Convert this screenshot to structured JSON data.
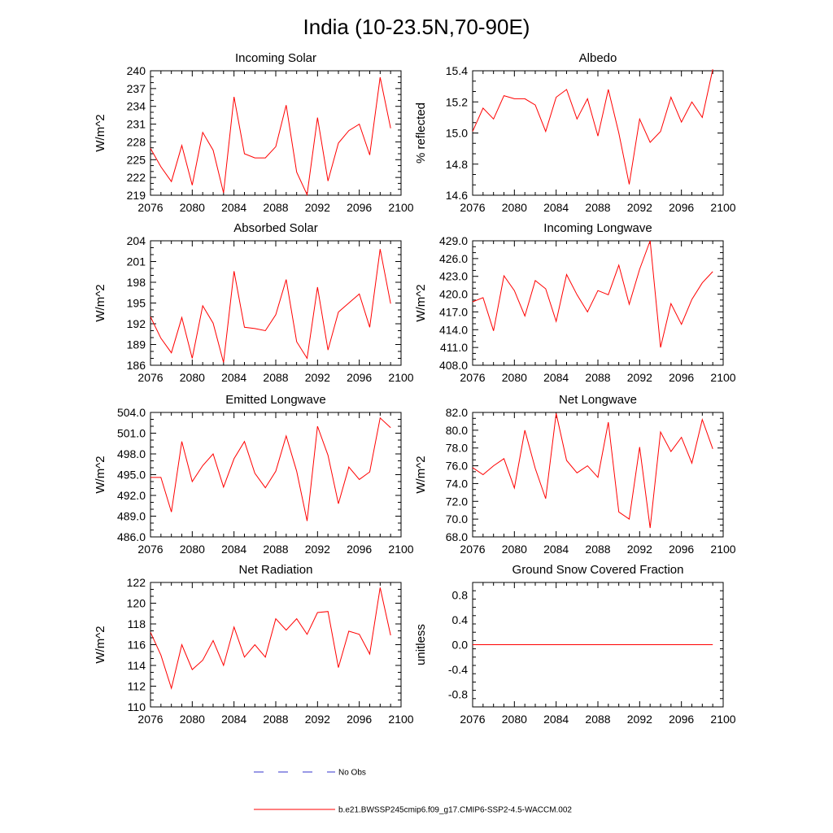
{
  "figure": {
    "title": "India (10-23.5N,70-90E)"
  },
  "colors": {
    "model_line": "#ff0000",
    "obs_line": "#3333cc",
    "axes": "#000000"
  },
  "legend": [
    {
      "label": "No Obs",
      "style": "dashed",
      "color": "#3333cc"
    },
    {
      "label": "b.e21.BWSSP245cmip6.f09_g17.CMIP6-SSP2-4.5-WACCM.002",
      "style": "solid",
      "color": "#ff0000"
    }
  ],
  "chart_data": [
    {
      "type": "line",
      "title": "Incoming Solar",
      "ylabel": "W/m^2",
      "xlim": [
        2076,
        2100
      ],
      "xticks": [
        "2076",
        "2080",
        "2084",
        "2088",
        "2092",
        "2096",
        "2100"
      ],
      "ylim": [
        219,
        240
      ],
      "yticks": [
        "219",
        "222",
        "225",
        "228",
        "231",
        "234",
        "237",
        "240"
      ],
      "x": [
        2076,
        2077,
        2078,
        2079,
        2080,
        2081,
        2082,
        2083,
        2084,
        2085,
        2086,
        2087,
        2088,
        2089,
        2090,
        2091,
        2092,
        2093,
        2094,
        2095,
        2096,
        2097,
        2098,
        2099
      ],
      "series": [
        {
          "name": "b.e21.BWSSP245cmip6.f09_g17.CMIP6-SSP2-4.5-WACCM.002",
          "values": [
            226.9,
            223.8,
            221.3,
            227.4,
            220.7,
            229.6,
            226.6,
            219.4,
            235.6,
            226.0,
            225.3,
            225.3,
            227.2,
            234.2,
            222.9,
            219.1,
            232.1,
            221.4,
            227.8,
            229.9,
            231.0,
            225.8,
            238.9,
            230.3
          ]
        }
      ]
    },
    {
      "type": "line",
      "title": "Albedo",
      "ylabel": "% reflected",
      "xlim": [
        2076,
        2100
      ],
      "xticks": [
        "2076",
        "2080",
        "2084",
        "2088",
        "2092",
        "2096",
        "2100"
      ],
      "ylim": [
        14.6,
        15.4
      ],
      "yticks": [
        "14.6",
        "14.8",
        "15.0",
        "15.2",
        "15.4"
      ],
      "x": [
        2076,
        2077,
        2078,
        2079,
        2080,
        2081,
        2082,
        2083,
        2084,
        2085,
        2086,
        2087,
        2088,
        2089,
        2090,
        2091,
        2092,
        2093,
        2094,
        2095,
        2096,
        2097,
        2098,
        2099
      ],
      "series": [
        {
          "name": "b.e21.BWSSP245cmip6.f09_g17.CMIP6-SSP2-4.5-WACCM.002",
          "values": [
            15.01,
            15.16,
            15.09,
            15.24,
            15.22,
            15.22,
            15.18,
            15.01,
            15.23,
            15.28,
            15.09,
            15.22,
            14.98,
            15.28,
            15.0,
            14.67,
            15.09,
            14.94,
            15.01,
            15.23,
            15.07,
            15.2,
            15.1,
            15.41
          ]
        }
      ]
    },
    {
      "type": "line",
      "title": "Absorbed Solar",
      "ylabel": "W/m^2",
      "xlim": [
        2076,
        2100
      ],
      "xticks": [
        "2076",
        "2080",
        "2084",
        "2088",
        "2092",
        "2096",
        "2100"
      ],
      "ylim": [
        186,
        204
      ],
      "yticks": [
        "186",
        "189",
        "192",
        "195",
        "198",
        "201",
        "204"
      ],
      "x": [
        2076,
        2077,
        2078,
        2079,
        2080,
        2081,
        2082,
        2083,
        2084,
        2085,
        2086,
        2087,
        2088,
        2089,
        2090,
        2091,
        2092,
        2093,
        2094,
        2095,
        2096,
        2097,
        2098,
        2099
      ],
      "series": [
        {
          "name": "b.e21.BWSSP245cmip6.f09_g17.CMIP6-SSP2-4.5-WACCM.002",
          "values": [
            193.0,
            189.9,
            187.8,
            192.9,
            187.0,
            194.6,
            192.1,
            186.4,
            199.6,
            191.5,
            191.3,
            191.0,
            193.3,
            198.4,
            189.4,
            187.0,
            197.3,
            188.2,
            193.7,
            195.0,
            196.3,
            191.5,
            202.8,
            194.9
          ]
        }
      ]
    },
    {
      "type": "line",
      "title": "Incoming Longwave",
      "ylabel": "W/m^2",
      "xlim": [
        2076,
        2100
      ],
      "xticks": [
        "2076",
        "2080",
        "2084",
        "2088",
        "2092",
        "2096",
        "2100"
      ],
      "ylim": [
        408.0,
        429.0
      ],
      "yticks": [
        "408.0",
        "411.0",
        "414.0",
        "417.0",
        "420.0",
        "423.0",
        "426.0",
        "429.0"
      ],
      "x": [
        2076,
        2077,
        2078,
        2079,
        2080,
        2081,
        2082,
        2083,
        2084,
        2085,
        2086,
        2087,
        2088,
        2089,
        2090,
        2091,
        2092,
        2093,
        2094,
        2095,
        2096,
        2097,
        2098,
        2099
      ],
      "series": [
        {
          "name": "b.e21.BWSSP245cmip6.f09_g17.CMIP6-SSP2-4.5-WACCM.002",
          "values": [
            418.7,
            419.4,
            413.8,
            423.1,
            420.6,
            416.3,
            422.3,
            420.9,
            415.4,
            423.3,
            419.9,
            417.0,
            420.6,
            419.9,
            424.9,
            418.3,
            424.2,
            429.0,
            411.0,
            418.4,
            414.9,
            419.1,
            421.9,
            423.8
          ]
        }
      ]
    },
    {
      "type": "line",
      "title": "Emitted Longwave",
      "ylabel": "W/m^2",
      "xlim": [
        2076,
        2100
      ],
      "xticks": [
        "2076",
        "2080",
        "2084",
        "2088",
        "2092",
        "2096",
        "2100"
      ],
      "ylim": [
        486.0,
        504.0
      ],
      "yticks": [
        "486.0",
        "489.0",
        "492.0",
        "495.0",
        "498.0",
        "501.0",
        "504.0"
      ],
      "x": [
        2076,
        2077,
        2078,
        2079,
        2080,
        2081,
        2082,
        2083,
        2084,
        2085,
        2086,
        2087,
        2088,
        2089,
        2090,
        2091,
        2092,
        2093,
        2094,
        2095,
        2096,
        2097,
        2098,
        2099
      ],
      "series": [
        {
          "name": "b.e21.BWSSP245cmip6.f09_g17.CMIP6-SSP2-4.5-WACCM.002",
          "values": [
            494.6,
            494.6,
            489.6,
            499.8,
            494.0,
            496.3,
            498.0,
            493.2,
            497.3,
            499.8,
            495.2,
            493.1,
            495.5,
            500.6,
            495.5,
            488.3,
            502.0,
            497.8,
            490.8,
            496.1,
            494.3,
            495.4,
            503.2,
            501.8
          ]
        }
      ]
    },
    {
      "type": "line",
      "title": "Net Longwave",
      "ylabel": "W/m^2",
      "xlim": [
        2076,
        2100
      ],
      "xticks": [
        "2076",
        "2080",
        "2084",
        "2088",
        "2092",
        "2096",
        "2100"
      ],
      "ylim": [
        68.0,
        82.0
      ],
      "yticks": [
        "68.0",
        "70.0",
        "72.0",
        "74.0",
        "76.0",
        "78.0",
        "80.0",
        "82.0"
      ],
      "x": [
        2076,
        2077,
        2078,
        2079,
        2080,
        2081,
        2082,
        2083,
        2084,
        2085,
        2086,
        2087,
        2088,
        2089,
        2090,
        2091,
        2092,
        2093,
        2094,
        2095,
        2096,
        2097,
        2098,
        2099
      ],
      "series": [
        {
          "name": "b.e21.BWSSP245cmip6.f09_g17.CMIP6-SSP2-4.5-WACCM.002",
          "values": [
            75.8,
            75.0,
            76.0,
            76.8,
            73.5,
            80.0,
            75.7,
            72.3,
            81.9,
            76.6,
            75.2,
            76.0,
            74.7,
            80.9,
            70.8,
            70.0,
            78.1,
            69.0,
            79.8,
            77.6,
            79.2,
            76.3,
            81.2,
            77.9
          ]
        }
      ]
    },
    {
      "type": "line",
      "title": "Net Radiation",
      "ylabel": "W/m^2",
      "xlim": [
        2076,
        2100
      ],
      "xticks": [
        "2076",
        "2080",
        "2084",
        "2088",
        "2092",
        "2096",
        "2100"
      ],
      "ylim": [
        110,
        122
      ],
      "yticks": [
        "110",
        "112",
        "114",
        "116",
        "118",
        "120",
        "122"
      ],
      "x": [
        2076,
        2077,
        2078,
        2079,
        2080,
        2081,
        2082,
        2083,
        2084,
        2085,
        2086,
        2087,
        2088,
        2089,
        2090,
        2091,
        2092,
        2093,
        2094,
        2095,
        2096,
        2097,
        2098,
        2099
      ],
      "series": [
        {
          "name": "b.e21.BWSSP245cmip6.f09_g17.CMIP6-SSP2-4.5-WACCM.002",
          "values": [
            117.2,
            115.0,
            111.8,
            116.0,
            113.6,
            114.5,
            116.4,
            114.0,
            117.7,
            114.8,
            116.0,
            114.8,
            118.5,
            117.4,
            118.5,
            117.0,
            119.1,
            119.2,
            113.8,
            117.3,
            117.0,
            115.1,
            121.5,
            116.9
          ]
        }
      ]
    },
    {
      "type": "line",
      "title": "Ground Snow Covered Fraction",
      "ylabel": "unitless",
      "xlim": [
        2076,
        2100
      ],
      "xticks": [
        "2076",
        "2080",
        "2084",
        "2088",
        "2092",
        "2096",
        "2100"
      ],
      "ylim": [
        -1.0,
        1.0
      ],
      "yticks": [
        "-0.8",
        "-0.4",
        "0.0",
        "0.4",
        "0.8"
      ],
      "x": [
        2076,
        2077,
        2078,
        2079,
        2080,
        2081,
        2082,
        2083,
        2084,
        2085,
        2086,
        2087,
        2088,
        2089,
        2090,
        2091,
        2092,
        2093,
        2094,
        2095,
        2096,
        2097,
        2098,
        2099
      ],
      "series": [
        {
          "name": "b.e21.BWSSP245cmip6.f09_g17.CMIP6-SSP2-4.5-WACCM.002",
          "values": [
            0,
            0,
            0,
            0,
            0,
            0,
            0,
            0,
            0,
            0,
            0,
            0,
            0,
            0,
            0,
            0,
            0,
            0,
            0,
            0,
            0,
            0,
            0,
            0
          ]
        }
      ]
    }
  ]
}
